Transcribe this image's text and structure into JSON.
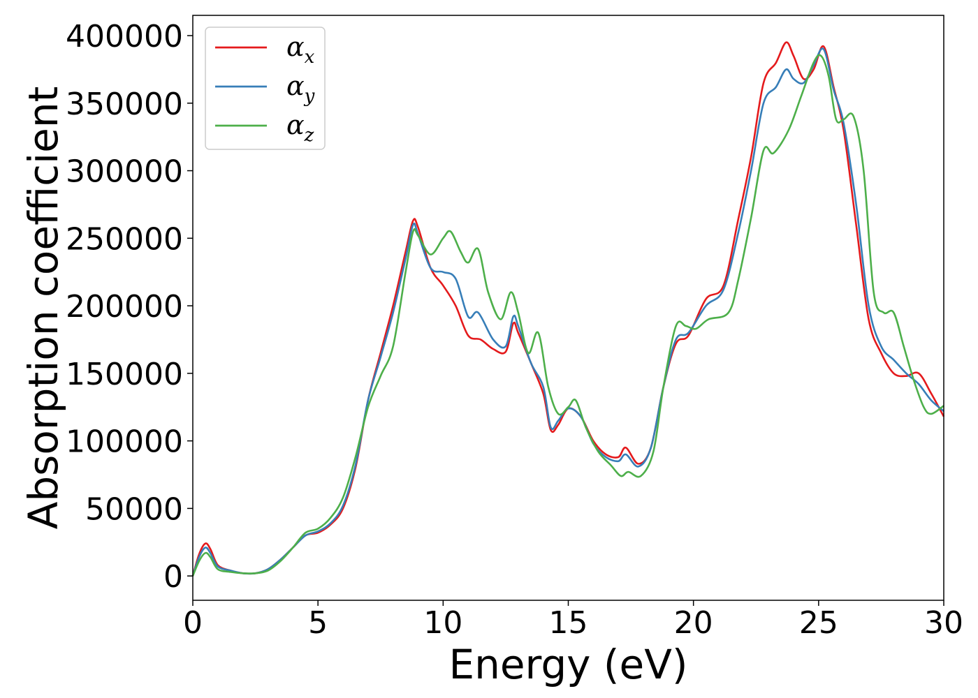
{
  "chart_data": {
    "type": "line",
    "title": "",
    "xlabel": "Energy (eV)",
    "ylabel": "Absorption coefficient",
    "xlim": [
      0,
      30
    ],
    "ylim": [
      -18000,
      415000
    ],
    "xticks": [
      "0",
      "5",
      "10",
      "15",
      "20",
      "25",
      "30"
    ],
    "yticks": [
      "0",
      "50000",
      "100000",
      "150000",
      "200000",
      "250000",
      "300000",
      "350000",
      "400000"
    ],
    "grid": false,
    "legend_position": "top-left",
    "series": [
      {
        "name": "α",
        "subscript": "x",
        "color": "#e41a1c",
        "points": [
          [
            0,
            0
          ],
          [
            0.25,
            16000
          ],
          [
            0.5,
            24000
          ],
          [
            0.7,
            20000
          ],
          [
            1.0,
            8000
          ],
          [
            1.5,
            4000
          ],
          [
            2.0,
            2000
          ],
          [
            2.5,
            2000
          ],
          [
            3.0,
            5000
          ],
          [
            3.5,
            12000
          ],
          [
            4.0,
            21000
          ],
          [
            4.5,
            30000
          ],
          [
            5.0,
            32000
          ],
          [
            5.5,
            38000
          ],
          [
            6.0,
            50000
          ],
          [
            6.5,
            80000
          ],
          [
            7.0,
            130000
          ],
          [
            7.5,
            165000
          ],
          [
            8.0,
            200000
          ],
          [
            8.5,
            240000
          ],
          [
            8.8,
            263000
          ],
          [
            9.0,
            258000
          ],
          [
            9.5,
            228000
          ],
          [
            10.0,
            215000
          ],
          [
            10.5,
            200000
          ],
          [
            11.0,
            178000
          ],
          [
            11.5,
            175000
          ],
          [
            12.0,
            168000
          ],
          [
            12.5,
            166000
          ],
          [
            12.8,
            187000
          ],
          [
            13.0,
            180000
          ],
          [
            13.5,
            158000
          ],
          [
            14.0,
            135000
          ],
          [
            14.3,
            108000
          ],
          [
            14.6,
            112000
          ],
          [
            15.0,
            124000
          ],
          [
            15.5,
            118000
          ],
          [
            16.0,
            100000
          ],
          [
            16.5,
            90000
          ],
          [
            17.0,
            88000
          ],
          [
            17.3,
            95000
          ],
          [
            17.8,
            83000
          ],
          [
            18.3,
            95000
          ],
          [
            18.8,
            140000
          ],
          [
            19.3,
            172000
          ],
          [
            19.8,
            178000
          ],
          [
            20.5,
            205000
          ],
          [
            21.2,
            215000
          ],
          [
            21.8,
            265000
          ],
          [
            22.3,
            310000
          ],
          [
            22.8,
            365000
          ],
          [
            23.3,
            380000
          ],
          [
            23.7,
            395000
          ],
          [
            24.0,
            385000
          ],
          [
            24.4,
            368000
          ],
          [
            24.8,
            375000
          ],
          [
            25.2,
            392000
          ],
          [
            25.6,
            362000
          ],
          [
            26.0,
            330000
          ],
          [
            26.5,
            260000
          ],
          [
            27.0,
            190000
          ],
          [
            27.5,
            165000
          ],
          [
            28.0,
            150000
          ],
          [
            28.5,
            148000
          ],
          [
            29.0,
            150000
          ],
          [
            29.5,
            135000
          ],
          [
            30.0,
            118000
          ]
        ]
      },
      {
        "name": "α",
        "subscript": "y",
        "color": "#377eb8",
        "points": [
          [
            0,
            0
          ],
          [
            0.25,
            14000
          ],
          [
            0.5,
            21000
          ],
          [
            0.7,
            17000
          ],
          [
            1.0,
            7000
          ],
          [
            1.5,
            4000
          ],
          [
            2.0,
            2000
          ],
          [
            2.5,
            2000
          ],
          [
            3.0,
            5000
          ],
          [
            3.5,
            12000
          ],
          [
            4.0,
            21000
          ],
          [
            4.5,
            30000
          ],
          [
            5.0,
            33000
          ],
          [
            5.5,
            39000
          ],
          [
            6.0,
            52000
          ],
          [
            6.5,
            82000
          ],
          [
            7.0,
            130000
          ],
          [
            7.5,
            162000
          ],
          [
            8.0,
            195000
          ],
          [
            8.5,
            235000
          ],
          [
            8.8,
            260000
          ],
          [
            9.0,
            253000
          ],
          [
            9.5,
            228000
          ],
          [
            10.0,
            225000
          ],
          [
            10.5,
            220000
          ],
          [
            11.0,
            192000
          ],
          [
            11.4,
            195000
          ],
          [
            12.0,
            175000
          ],
          [
            12.5,
            170000
          ],
          [
            12.8,
            192000
          ],
          [
            13.0,
            185000
          ],
          [
            13.5,
            158000
          ],
          [
            14.0,
            140000
          ],
          [
            14.3,
            110000
          ],
          [
            14.6,
            115000
          ],
          [
            15.0,
            124000
          ],
          [
            15.5,
            118000
          ],
          [
            16.0,
            98000
          ],
          [
            16.5,
            88000
          ],
          [
            17.0,
            85000
          ],
          [
            17.3,
            90000
          ],
          [
            17.8,
            81000
          ],
          [
            18.3,
            95000
          ],
          [
            18.8,
            140000
          ],
          [
            19.3,
            175000
          ],
          [
            19.8,
            180000
          ],
          [
            20.5,
            200000
          ],
          [
            21.2,
            212000
          ],
          [
            21.8,
            255000
          ],
          [
            22.3,
            300000
          ],
          [
            22.8,
            350000
          ],
          [
            23.3,
            362000
          ],
          [
            23.7,
            375000
          ],
          [
            24.0,
            368000
          ],
          [
            24.4,
            365000
          ],
          [
            24.8,
            378000
          ],
          [
            25.2,
            390000
          ],
          [
            25.6,
            360000
          ],
          [
            26.0,
            335000
          ],
          [
            26.5,
            275000
          ],
          [
            27.0,
            200000
          ],
          [
            27.5,
            170000
          ],
          [
            28.0,
            160000
          ],
          [
            28.5,
            150000
          ],
          [
            29.0,
            142000
          ],
          [
            29.5,
            130000
          ],
          [
            30.0,
            122000
          ]
        ]
      },
      {
        "name": "α",
        "subscript": "z",
        "color": "#4daf4a",
        "points": [
          [
            0,
            0
          ],
          [
            0.25,
            11000
          ],
          [
            0.5,
            17000
          ],
          [
            0.7,
            14000
          ],
          [
            1.0,
            5000
          ],
          [
            1.5,
            3000
          ],
          [
            2.0,
            2000
          ],
          [
            2.5,
            2000
          ],
          [
            3.0,
            4000
          ],
          [
            3.5,
            11000
          ],
          [
            4.0,
            21000
          ],
          [
            4.5,
            32000
          ],
          [
            5.0,
            35000
          ],
          [
            5.5,
            43000
          ],
          [
            6.0,
            58000
          ],
          [
            6.5,
            88000
          ],
          [
            7.0,
            125000
          ],
          [
            7.5,
            148000
          ],
          [
            8.0,
            170000
          ],
          [
            8.5,
            225000
          ],
          [
            8.8,
            255000
          ],
          [
            9.0,
            252000
          ],
          [
            9.5,
            238000
          ],
          [
            10.0,
            250000
          ],
          [
            10.3,
            255000
          ],
          [
            10.7,
            240000
          ],
          [
            11.0,
            232000
          ],
          [
            11.4,
            242000
          ],
          [
            11.8,
            210000
          ],
          [
            12.3,
            190000
          ],
          [
            12.7,
            210000
          ],
          [
            13.0,
            195000
          ],
          [
            13.4,
            165000
          ],
          [
            13.8,
            180000
          ],
          [
            14.2,
            140000
          ],
          [
            14.6,
            120000
          ],
          [
            15.0,
            125000
          ],
          [
            15.3,
            130000
          ],
          [
            15.7,
            110000
          ],
          [
            16.2,
            92000
          ],
          [
            16.7,
            82000
          ],
          [
            17.1,
            74000
          ],
          [
            17.4,
            77000
          ],
          [
            17.9,
            74000
          ],
          [
            18.4,
            92000
          ],
          [
            18.8,
            140000
          ],
          [
            19.3,
            185000
          ],
          [
            19.7,
            185000
          ],
          [
            20.1,
            183000
          ],
          [
            20.6,
            190000
          ],
          [
            21.4,
            195000
          ],
          [
            21.8,
            220000
          ],
          [
            22.3,
            265000
          ],
          [
            22.8,
            315000
          ],
          [
            23.2,
            313000
          ],
          [
            23.8,
            330000
          ],
          [
            24.3,
            355000
          ],
          [
            24.8,
            380000
          ],
          [
            25.1,
            385000
          ],
          [
            25.4,
            370000
          ],
          [
            25.7,
            338000
          ],
          [
            26.0,
            338000
          ],
          [
            26.4,
            340000
          ],
          [
            26.8,
            300000
          ],
          [
            27.2,
            210000
          ],
          [
            27.6,
            195000
          ],
          [
            28.0,
            195000
          ],
          [
            28.4,
            170000
          ],
          [
            28.8,
            145000
          ],
          [
            29.2,
            125000
          ],
          [
            29.5,
            120000
          ],
          [
            30.0,
            126000
          ]
        ]
      }
    ]
  }
}
